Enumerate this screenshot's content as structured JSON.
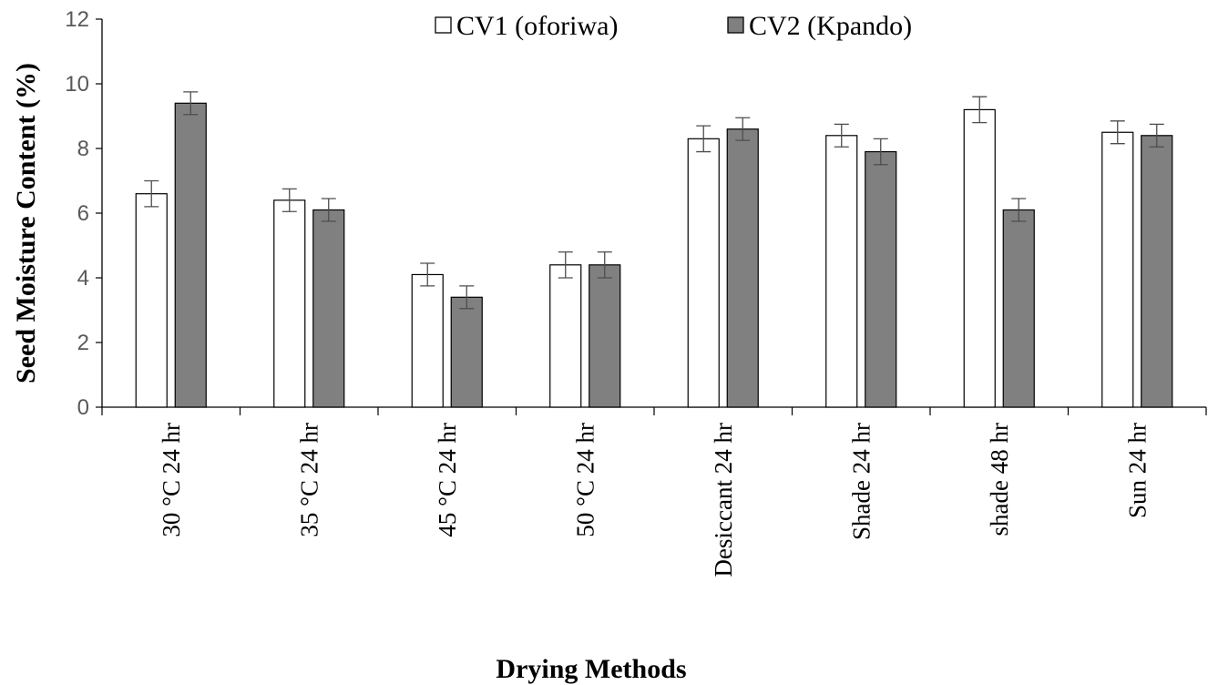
{
  "chart_data": {
    "type": "bar",
    "title": "",
    "xlabel": "Drying Methods",
    "ylabel": "Seed Moisture Content (%)",
    "ylim": [
      0,
      12
    ],
    "yticks": [
      0,
      2,
      4,
      6,
      8,
      10,
      12
    ],
    "grid": false,
    "legend_position": "top",
    "categories": [
      "30 °C 24 hr",
      "35 °C 24 hr",
      "45 °C 24 hr",
      "50 °C 24 hr",
      "Desiccant 24 hr",
      "Shade 24 hr",
      "shade 48 hr",
      "Sun 24 hr"
    ],
    "series": [
      {
        "name": "CV1 (oforiwa)",
        "color": "#ffffff",
        "values": [
          6.6,
          6.4,
          4.1,
          4.4,
          8.3,
          8.4,
          9.2,
          8.5
        ],
        "error": [
          0.4,
          0.35,
          0.35,
          0.4,
          0.4,
          0.35,
          0.4,
          0.35
        ]
      },
      {
        "name": "CV2 (Kpando)",
        "color": "#808080",
        "values": [
          9.4,
          6.1,
          3.4,
          4.4,
          8.6,
          7.9,
          6.1,
          8.4
        ],
        "error": [
          0.35,
          0.35,
          0.35,
          0.4,
          0.35,
          0.4,
          0.35,
          0.35
        ]
      }
    ]
  }
}
